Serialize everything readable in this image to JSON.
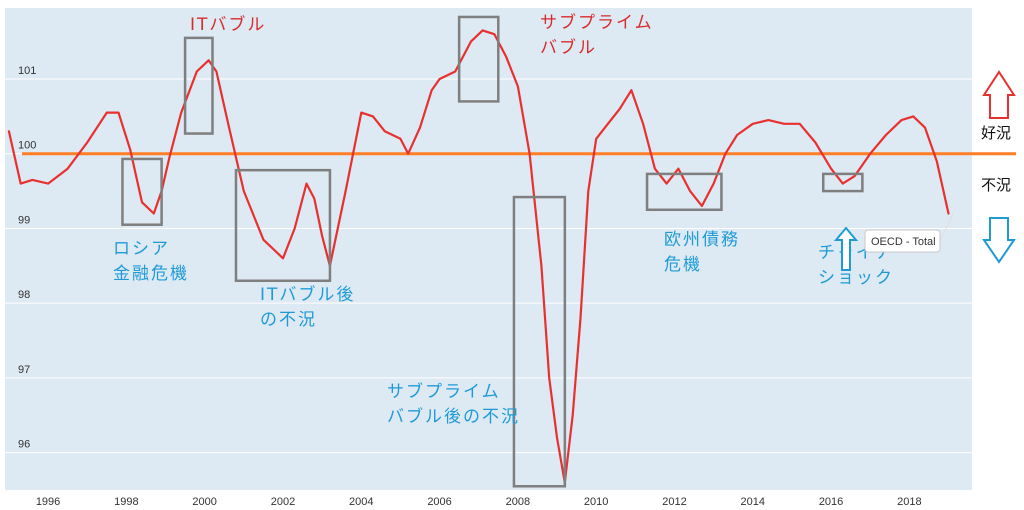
{
  "chart_data": {
    "type": "line",
    "title": "",
    "xlabel": "",
    "ylabel": "",
    "x_ticks": [
      "1996",
      "1998",
      "2000",
      "2002",
      "2004",
      "2006",
      "2008",
      "2010",
      "2012",
      "2014",
      "2016",
      "2018"
    ],
    "y_ticks": [
      "96",
      "97",
      "98",
      "99",
      "100",
      "101"
    ],
    "xlim": [
      1994.9,
      2019.6
    ],
    "ylim": [
      95.5,
      101.95
    ],
    "grid": "horizontal",
    "reference_line": {
      "value": 100,
      "color": "#FF7F27"
    },
    "series": [
      {
        "name": "OECD - Total",
        "color": "#E8312F",
        "x": [
          1995.0,
          1995.3,
          1995.6,
          1996.0,
          1996.5,
          1997.0,
          1997.5,
          1997.8,
          1998.1,
          1998.4,
          1998.7,
          1998.9,
          1999.1,
          1999.4,
          1999.8,
          2000.1,
          2000.3,
          2000.6,
          2001.0,
          2001.5,
          2002.0,
          2002.3,
          2002.6,
          2002.8,
          2003.0,
          2003.2,
          2003.6,
          2004.0,
          2004.3,
          2004.6,
          2005.0,
          2005.2,
          2005.5,
          2005.8,
          2006.0,
          2006.4,
          2006.8,
          2007.1,
          2007.4,
          2007.7,
          2008.0,
          2008.3,
          2008.6,
          2008.8,
          2009.0,
          2009.2,
          2009.4,
          2009.6,
          2009.8,
          2010.0,
          2010.3,
          2010.6,
          2010.9,
          2011.2,
          2011.5,
          2011.8,
          2012.1,
          2012.4,
          2012.7,
          2013.0,
          2013.3,
          2013.6,
          2014.0,
          2014.4,
          2014.8,
          2015.2,
          2015.6,
          2016.0,
          2016.3,
          2016.6,
          2017.0,
          2017.4,
          2017.8,
          2018.1,
          2018.4,
          2018.7,
          2019.0
        ],
        "values": [
          100.3,
          99.6,
          99.65,
          99.6,
          99.8,
          100.15,
          100.55,
          100.55,
          100.05,
          99.35,
          99.2,
          99.5,
          99.95,
          100.55,
          101.1,
          101.25,
          101.1,
          100.4,
          99.5,
          98.85,
          98.6,
          99.0,
          99.6,
          99.4,
          98.9,
          98.5,
          99.5,
          100.55,
          100.5,
          100.3,
          100.2,
          100.0,
          100.35,
          100.85,
          101.0,
          101.1,
          101.5,
          101.65,
          101.6,
          101.3,
          100.9,
          100.0,
          98.5,
          97.0,
          96.2,
          95.6,
          96.5,
          97.8,
          99.5,
          100.2,
          100.4,
          100.6,
          100.85,
          100.4,
          99.8,
          99.6,
          99.8,
          99.5,
          99.3,
          99.6,
          100.0,
          100.25,
          100.4,
          100.45,
          100.4,
          100.4,
          100.15,
          99.8,
          99.6,
          99.7,
          100.0,
          100.25,
          100.45,
          100.5,
          100.35,
          99.9,
          99.2
        ]
      }
    ],
    "annotations": [
      {
        "id": "it-bubble",
        "lines": [
          "ITバブル"
        ],
        "color": "#D92B2B",
        "x_range": [
          1999.5,
          2000.2
        ],
        "y_range": [
          100.27,
          101.55
        ]
      },
      {
        "id": "russia-crisis",
        "lines": [
          "ロシア",
          "金融危機"
        ],
        "color": "#1E9BD7",
        "x_range": [
          1997.9,
          1998.9
        ],
        "y_range": [
          99.05,
          99.93
        ]
      },
      {
        "id": "post-it-bubble",
        "lines": [
          "ITバブル後",
          "の不況"
        ],
        "color": "#1E9BD7",
        "x_range": [
          2000.8,
          2003.2
        ],
        "y_range": [
          98.3,
          99.78
        ]
      },
      {
        "id": "subprime-bubble",
        "lines": [
          "サブプライム",
          "バブル"
        ],
        "color": "#D92B2B",
        "x_range": [
          2006.5,
          2007.5
        ],
        "y_range": [
          100.7,
          101.83
        ]
      },
      {
        "id": "post-subprime",
        "lines": [
          "サブプライム",
          "バブル後の不況"
        ],
        "color": "#1E9BD7",
        "x_range": [
          2007.9,
          2009.2
        ],
        "y_range": [
          95.55,
          99.42
        ]
      },
      {
        "id": "euro-crisis",
        "lines": [
          "欧州債務",
          "危機"
        ],
        "color": "#1E9BD7",
        "x_range": [
          2011.3,
          2013.2
        ],
        "y_range": [
          99.25,
          99.73
        ]
      },
      {
        "id": "china-shock",
        "lines": [
          "チャイナ",
          "ショック"
        ],
        "color": "#1E9BD7",
        "x_range": [
          2015.8,
          2016.8
        ],
        "y_range": [
          99.5,
          99.73
        ]
      }
    ],
    "tooltip": "OECD - Total",
    "side_labels": {
      "boom": "好況",
      "recession": "不況"
    },
    "colors": {
      "plot_background": "#DDE9F3",
      "grid": "#FFFFFF",
      "box": "#7F7F7F",
      "boom_arrow": "#E8312F",
      "recession_arrow": "#1E9BD7"
    }
  }
}
